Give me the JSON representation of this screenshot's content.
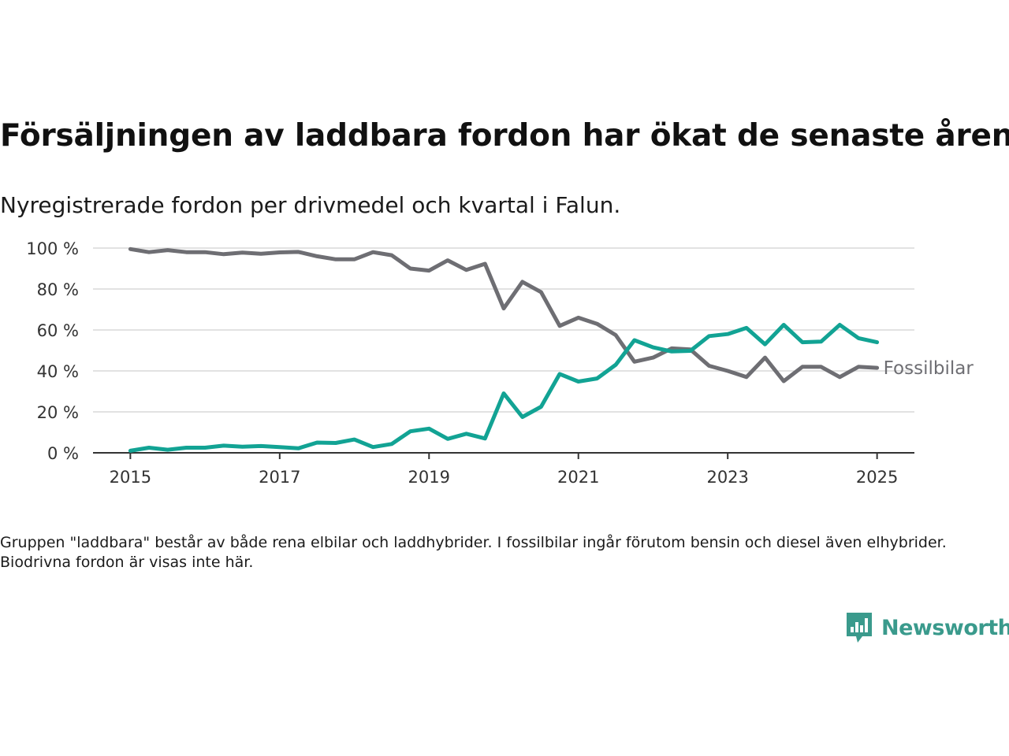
{
  "title": "Försäljningen av laddbara fordon har ökat de senaste åren",
  "subtitle": "Nyregistrerade fordon per drivmedel och kvartal i Falun.",
  "footnote": "Gruppen \"laddbara\" består av både rena elbilar och laddhybrider. I fossilbilar ingår förutom bensin och diesel även elhybrider. Biodrivna fordon är visas inte här.",
  "brand": "Newsworthy",
  "colors": {
    "laddbara": "#12a394",
    "fossil": "#6e6e73",
    "grid": "#d9d9d9",
    "axis": "#333333",
    "brand": "#3a9a8c"
  },
  "chart_data": {
    "type": "line",
    "x": [
      2015.0,
      2015.25,
      2015.5,
      2015.75,
      2016.0,
      2016.25,
      2016.5,
      2016.75,
      2017.0,
      2017.25,
      2017.5,
      2017.75,
      2018.0,
      2018.25,
      2018.5,
      2018.75,
      2019.0,
      2019.25,
      2019.5,
      2019.75,
      2020.0,
      2020.25,
      2020.5,
      2020.75,
      2021.0,
      2021.25,
      2021.5,
      2021.75,
      2022.0,
      2022.25,
      2022.5,
      2022.75,
      2023.0,
      2023.25,
      2023.5,
      2023.75,
      2024.0,
      2024.25,
      2024.5,
      2024.75,
      2025.0
    ],
    "series": [
      {
        "name": "Fossilbilar",
        "key": "fossil",
        "values": [
          99.5,
          98,
          99,
          98,
          98,
          97,
          97.8,
          97.2,
          97.9,
          98.1,
          96,
          94.5,
          94.5,
          98,
          96.5,
          90,
          89,
          94,
          89.3,
          92.3,
          70.5,
          83.5,
          78.5,
          62,
          66,
          63,
          57.5,
          44.5,
          46.5,
          51,
          50.5,
          42.5,
          40,
          37,
          46.5,
          35,
          42,
          42,
          37,
          42,
          41.5
        ]
      },
      {
        "name": "",
        "key": "laddbara",
        "values": [
          1,
          2.5,
          1.5,
          2.5,
          2.5,
          3.5,
          3,
          3.3,
          2.8,
          2.2,
          5,
          4.8,
          6.5,
          2.8,
          4.3,
          10.5,
          11.8,
          6.8,
          9.3,
          7,
          29,
          17.5,
          22.5,
          38.5,
          34.8,
          36.3,
          43,
          55,
          51.5,
          49.5,
          49.8,
          57,
          58,
          61,
          53,
          62.5,
          54,
          54.3,
          62.5,
          56,
          54
        ]
      }
    ],
    "end_label": "Fossilbilar",
    "x_ticks": [
      2015,
      2017,
      2019,
      2021,
      2023,
      2025
    ],
    "y_ticks": [
      0,
      20,
      40,
      60,
      80,
      100
    ],
    "y_tick_labels": [
      "0 %",
      "20 %",
      "40 %",
      "60 %",
      "80 %",
      "100 %"
    ],
    "xlim": [
      2014.5,
      2025.5
    ],
    "ylim": [
      0,
      100
    ],
    "grid": true,
    "xlabel": "",
    "ylabel": ""
  }
}
